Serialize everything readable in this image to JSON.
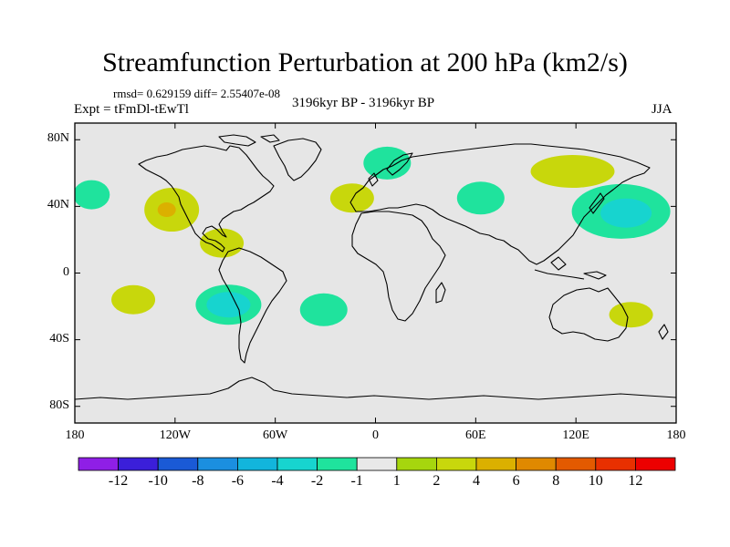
{
  "title": "Streamfunction Perturbation at 200 hPa (km2/s)",
  "stats": "rmsd= 0.629159 diff= 2.55407e-08",
  "experiment": "Expt = tFmDl-tEwTl",
  "period": "3196kyr BP - 3196kyr BP",
  "season": "JJA",
  "colors": {
    "ocean_background": "#e6e6e6",
    "coastline": "#000000"
  },
  "lon_ticks": [
    "180",
    "120W",
    "60W",
    "0",
    "60E",
    "120E",
    "180"
  ],
  "lat_ticks": [
    "80N",
    "40N",
    "0",
    "40S",
    "80S"
  ],
  "colorbar": {
    "labels": [
      "-12",
      "-10",
      "-8",
      "-6",
      "-4",
      "-2",
      "-1",
      "1",
      "2",
      "4",
      "6",
      "8",
      "10",
      "12"
    ],
    "colors": [
      "#8f1fe6",
      "#3b1fd9",
      "#1a5ad6",
      "#1b8fe0",
      "#12b5dc",
      "#17d4cf",
      "#1fe39d",
      "#e8e8e8",
      "#a6d60e",
      "#c8d70c",
      "#dbb000",
      "#e08900",
      "#e35a00",
      "#e83000",
      "#ec0000"
    ]
  },
  "chart_data": {
    "type": "map_contour",
    "title": "Streamfunction Perturbation at 200 hPa (km2/s)",
    "lon_range": [
      -180,
      180
    ],
    "lat_range": [
      -90,
      90
    ],
    "anomalies": [
      {
        "lon": -170,
        "lat": 47,
        "level": "-1"
      },
      {
        "lon": -122,
        "lat": 38,
        "level": "2"
      },
      {
        "lon": -125,
        "lat": 38,
        "level": "4"
      },
      {
        "lon": -92,
        "lat": 18,
        "level": "2"
      },
      {
        "lon": -145,
        "lat": -16,
        "level": "2"
      },
      {
        "lon": -88,
        "lat": -19,
        "level": "-1"
      },
      {
        "lon": -88,
        "lat": -19,
        "level": "-2"
      },
      {
        "lon": -31,
        "lat": -22,
        "level": "-1"
      },
      {
        "lon": -14,
        "lat": 45,
        "level": "2"
      },
      {
        "lon": 7,
        "lat": 66,
        "level": "-1"
      },
      {
        "lon": 63,
        "lat": 45,
        "level": "-1"
      },
      {
        "lon": 118,
        "lat": 61,
        "level": "2"
      },
      {
        "lon": 147,
        "lat": 37,
        "level": "-1"
      },
      {
        "lon": 150,
        "lat": 36,
        "level": "-2"
      },
      {
        "lon": 153,
        "lat": -25,
        "level": "2"
      }
    ]
  }
}
